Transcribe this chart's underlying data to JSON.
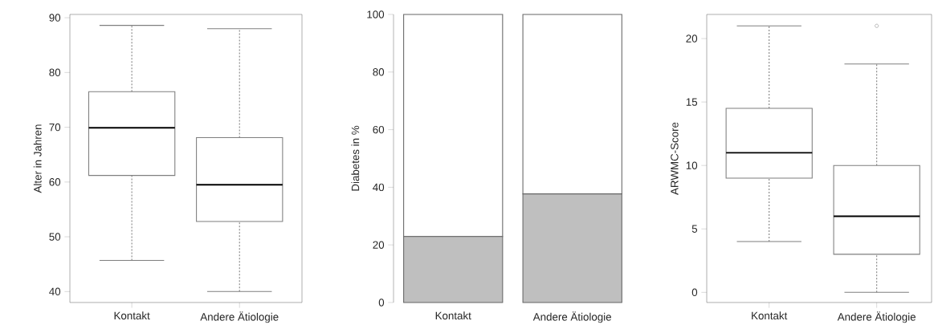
{
  "chart_data": [
    {
      "type": "box",
      "ylabel": "Alter in Jahren",
      "categories": [
        "Kontakt",
        "Andere Ätiologie"
      ],
      "color": "#7f7f7f",
      "ylim": [
        38,
        90.6
      ],
      "yticks": [
        40,
        50,
        60,
        70,
        80,
        90
      ],
      "boxes": [
        {
          "low": 45.7,
          "q1": 61.2,
          "median": 69.9,
          "q3": 76.5,
          "high": 88.6
        },
        {
          "low": 40,
          "q1": 52.8,
          "median": 59.5,
          "q3": 68.1,
          "high": 88
        }
      ]
    },
    {
      "type": "bar",
      "stacked": true,
      "ylabel": "Diabetes in %",
      "categories": [
        "Kontakt",
        "Andere Ätiologie"
      ],
      "ylim": [
        0,
        100
      ],
      "yticks": [
        0,
        20,
        40,
        60,
        80,
        100
      ],
      "series": [
        {
          "color": "#bfbfbf",
          "values": [
            22.9,
            37.7
          ]
        },
        {
          "color": "#ffffff",
          "values": [
            77.1,
            62.3
          ]
        }
      ]
    },
    {
      "type": "box",
      "ylabel": "ARWMC-Score",
      "categories": [
        "Kontakt",
        "Andere Ätiologie"
      ],
      "color": "#7f7f7f",
      "ylim": [
        -0.8,
        21.9
      ],
      "yticks": [
        0,
        5,
        10,
        15,
        20
      ],
      "boxes": [
        {
          "low": 4,
          "q1": 9,
          "median": 11,
          "q3": 14.5,
          "high": 21
        },
        {
          "low": 0,
          "q1": 3,
          "median": 6,
          "q3": 10,
          "high": 18,
          "outliers": [
            21
          ]
        }
      ]
    }
  ]
}
